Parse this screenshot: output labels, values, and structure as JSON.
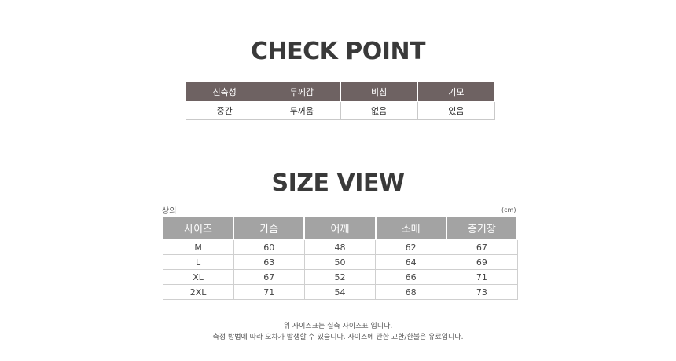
{
  "check_point": {
    "title": "CHECK POINT",
    "headers": [
      "신축성",
      "두께감",
      "비침",
      "기모"
    ],
    "values": [
      "중간",
      "두꺼움",
      "없음",
      "있음"
    ]
  },
  "size_view": {
    "title": "SIZE VIEW",
    "caption": "상의",
    "unit": "(cm)",
    "headers": [
      "사이즈",
      "가슴",
      "어깨",
      "소매",
      "총기장"
    ],
    "rows": [
      [
        "M",
        "60",
        "48",
        "62",
        "67"
      ],
      [
        "L",
        "63",
        "50",
        "64",
        "69"
      ],
      [
        "XL",
        "67",
        "52",
        "66",
        "71"
      ],
      [
        "2XL",
        "71",
        "54",
        "68",
        "73"
      ]
    ]
  },
  "notes": {
    "line1": "위 사이즈표는 실측 사이즈표 입니다.",
    "line2": "측정 방법에 따라 오차가 발생할 수 있습니다. 사이즈에 관한 교환/환불은 유료입니다."
  },
  "colors": {
    "check_header_bg": "#6e6262",
    "size_header_bg": "#a3a3a3"
  }
}
